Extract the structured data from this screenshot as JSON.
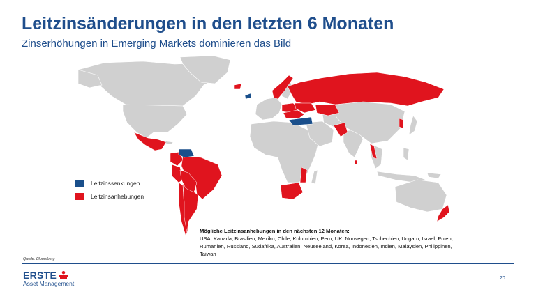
{
  "header": {
    "title": "Leitzinsänderungen in den letzten 6 Monaten",
    "subtitle": "Zinserhöhungen in Emerging Markets dominieren das Bild"
  },
  "legend": {
    "items": [
      {
        "label": "Leitzinssenkungen",
        "color": "#1a4f8b"
      },
      {
        "label": "Leitzinsanhebungen",
        "color": "#e0141e"
      }
    ]
  },
  "map": {
    "land_color": "#d0d0d0",
    "cuts": [
      "Venezuela",
      "Türkei",
      "Island"
    ],
    "hikes": [
      "Mexiko",
      "Kolumbien",
      "Peru",
      "Brasilien",
      "Chile",
      "Argentinien",
      "Paraguay",
      "Uruguay",
      "Norwegen",
      "Tschechien",
      "Ungarn",
      "Polen",
      "Rumänien",
      "Russland",
      "Ukraine",
      "Kasachstan",
      "Pakistan",
      "Sri Lanka",
      "Südkorea",
      "Vietnam",
      "Südafrika",
      "Mosambik",
      "Neuseeland"
    ]
  },
  "notes": {
    "heading": "Mögliche Leitzinsanhebungen in den nächsten 12 Monaten:",
    "line1": "USA, Kanada, Brasilien, Mexiko, Chile, Kolumbien, Peru, UK, Norwegen, Tschechien, Ungarn, Israel, Polen,",
    "line2": "Rumänien, Russland, Südafrika, Australien, Neuseeland, Korea, Indonesien, Indien, Malaysien, Philippinen,",
    "line3": "Taiwan"
  },
  "footer": {
    "source": "Quelle: Bloomberg",
    "logo_word": "ERSTE",
    "logo_sub": "Asset Management",
    "page_number": "20"
  }
}
